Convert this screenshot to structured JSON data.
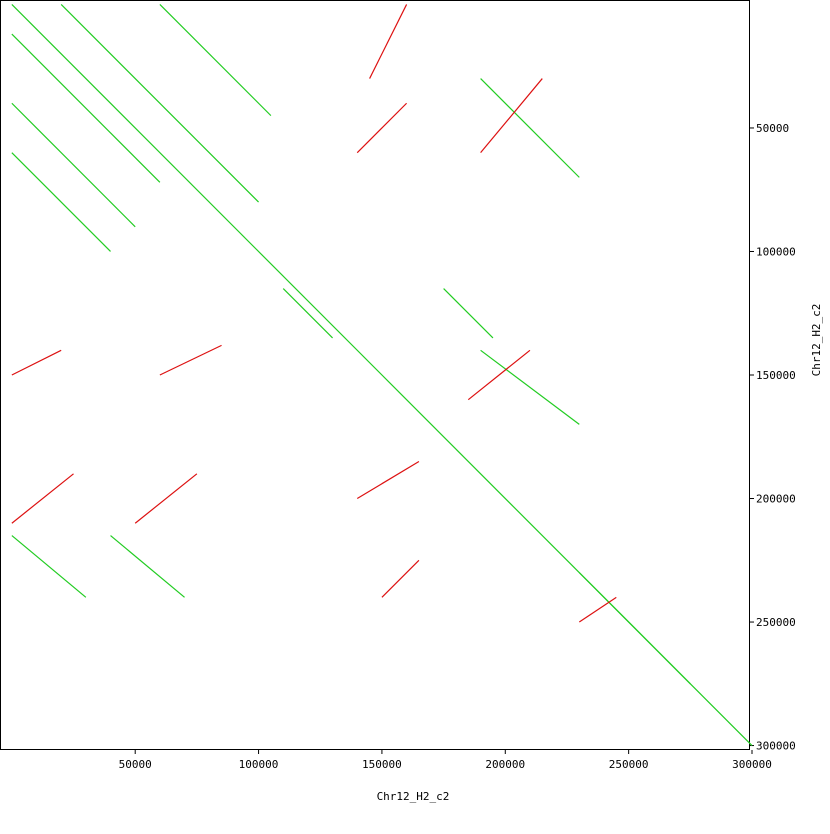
{
  "chart_data": {
    "type": "dotplot",
    "x_label": "Chr12_H2_c2",
    "y_label": "Chr12_H2_c2",
    "xlim": [
      -4800,
      300000
    ],
    "ylim": [
      -1800,
      301800
    ],
    "xticks": [
      50000,
      100000,
      150000,
      200000,
      250000,
      300000
    ],
    "yticks": [
      50000,
      100000,
      150000,
      200000,
      250000,
      300000
    ],
    "series": [
      {
        "color": "#22cc22",
        "segments": [
          [
            0,
            0,
            300000,
            300000
          ],
          [
            0,
            12000,
            60000,
            72000
          ],
          [
            20000,
            0,
            100000,
            80000
          ],
          [
            0,
            40000,
            50000,
            90000
          ],
          [
            60000,
            0,
            105000,
            45000
          ],
          [
            0,
            60000,
            40000,
            100000
          ],
          [
            190000,
            30000,
            230000,
            70000
          ],
          [
            0,
            215000,
            30000,
            240000
          ],
          [
            40000,
            215000,
            70000,
            240000
          ],
          [
            190000,
            140000,
            230000,
            170000
          ],
          [
            230000,
            230000,
            275000,
            275000
          ],
          [
            110000,
            115000,
            130000,
            135000
          ],
          [
            175000,
            115000,
            195000,
            135000
          ]
        ]
      },
      {
        "color": "#dd1111",
        "segments": [
          [
            0,
            210000,
            25000,
            190000
          ],
          [
            50000,
            210000,
            75000,
            190000
          ],
          [
            140000,
            60000,
            160000,
            40000
          ],
          [
            190000,
            60000,
            215000,
            30000
          ],
          [
            0,
            150000,
            20000,
            140000
          ],
          [
            60000,
            150000,
            85000,
            138000
          ],
          [
            140000,
            200000,
            165000,
            185000
          ],
          [
            185000,
            160000,
            210000,
            140000
          ],
          [
            145000,
            30000,
            160000,
            0
          ],
          [
            150000,
            240000,
            165000,
            225000
          ],
          [
            230000,
            250000,
            245000,
            240000
          ]
        ]
      }
    ]
  }
}
